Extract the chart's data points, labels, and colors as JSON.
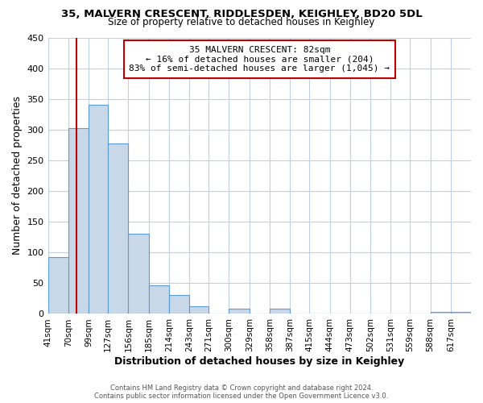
{
  "title": "35, MALVERN CRESCENT, RIDDLESDEN, KEIGHLEY, BD20 5DL",
  "subtitle": "Size of property relative to detached houses in Keighley",
  "xlabel": "Distribution of detached houses by size in Keighley",
  "ylabel": "Number of detached properties",
  "bin_labels": [
    "41sqm",
    "70sqm",
    "99sqm",
    "127sqm",
    "156sqm",
    "185sqm",
    "214sqm",
    "243sqm",
    "271sqm",
    "300sqm",
    "329sqm",
    "358sqm",
    "387sqm",
    "415sqm",
    "444sqm",
    "473sqm",
    "502sqm",
    "531sqm",
    "559sqm",
    "588sqm",
    "617sqm"
  ],
  "bar_values": [
    92,
    303,
    340,
    278,
    131,
    47,
    31,
    13,
    0,
    8,
    0,
    9,
    0,
    0,
    0,
    0,
    0,
    0,
    0,
    3,
    3
  ],
  "bar_color": "#c8d8e8",
  "bar_edge_color": "#5b9bd5",
  "vline_x": 82,
  "vline_color": "#c00000",
  "ylim": [
    0,
    450
  ],
  "yticks": [
    0,
    50,
    100,
    150,
    200,
    250,
    300,
    350,
    400,
    450
  ],
  "annotation_title": "35 MALVERN CRESCENT: 82sqm",
  "annotation_line1": "← 16% of detached houses are smaller (204)",
  "annotation_line2": "83% of semi-detached houses are larger (1,045) →",
  "annotation_box_color": "#ffffff",
  "annotation_box_edge": "#c00000",
  "footer1": "Contains HM Land Registry data © Crown copyright and database right 2024.",
  "footer2": "Contains public sector information licensed under the Open Government Licence v3.0.",
  "bin_edges": [
    41,
    70,
    99,
    127,
    156,
    185,
    214,
    243,
    271,
    300,
    329,
    358,
    387,
    415,
    444,
    473,
    502,
    531,
    559,
    588,
    617,
    646
  ],
  "bg_color": "#ffffff",
  "grid_color": "#c0d0e0"
}
